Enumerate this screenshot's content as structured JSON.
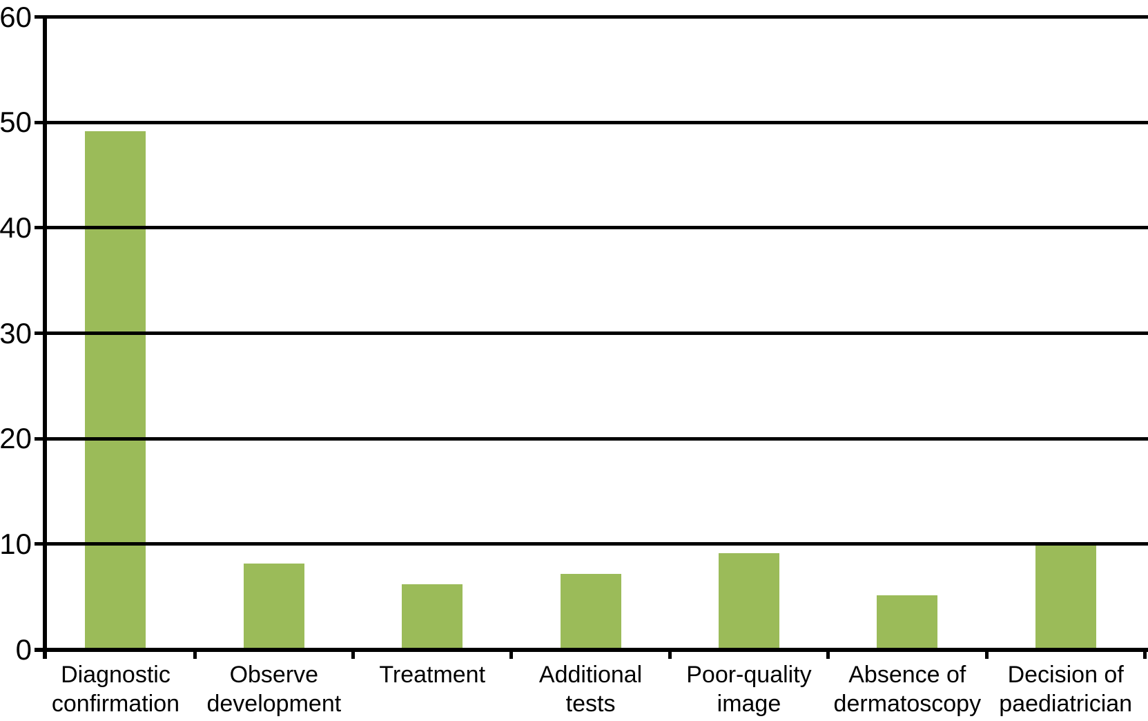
{
  "chart_data": {
    "type": "bar",
    "title": "",
    "xlabel": "",
    "ylabel": "",
    "categories": [
      "Diagnostic\nconfirmation",
      "Observe\ndevelopment",
      "Treatment",
      "Additional\ntests",
      "Poor-quality\nimage",
      "Absence of\ndermatoscopy",
      "Decision of\npaediatrician"
    ],
    "values": [
      49,
      8,
      6,
      7,
      9,
      5,
      10
    ],
    "ylim": [
      0,
      60
    ],
    "ytick_interval": 10,
    "ytick_labels": [
      "0",
      "10",
      "20",
      "30",
      "40",
      "50",
      "60"
    ],
    "grid": "horizontal-lines-over-bars",
    "legend": "none",
    "bar_color": "#9BBB59",
    "axis_color": "#000000",
    "background_color": "#FFFFFF"
  }
}
